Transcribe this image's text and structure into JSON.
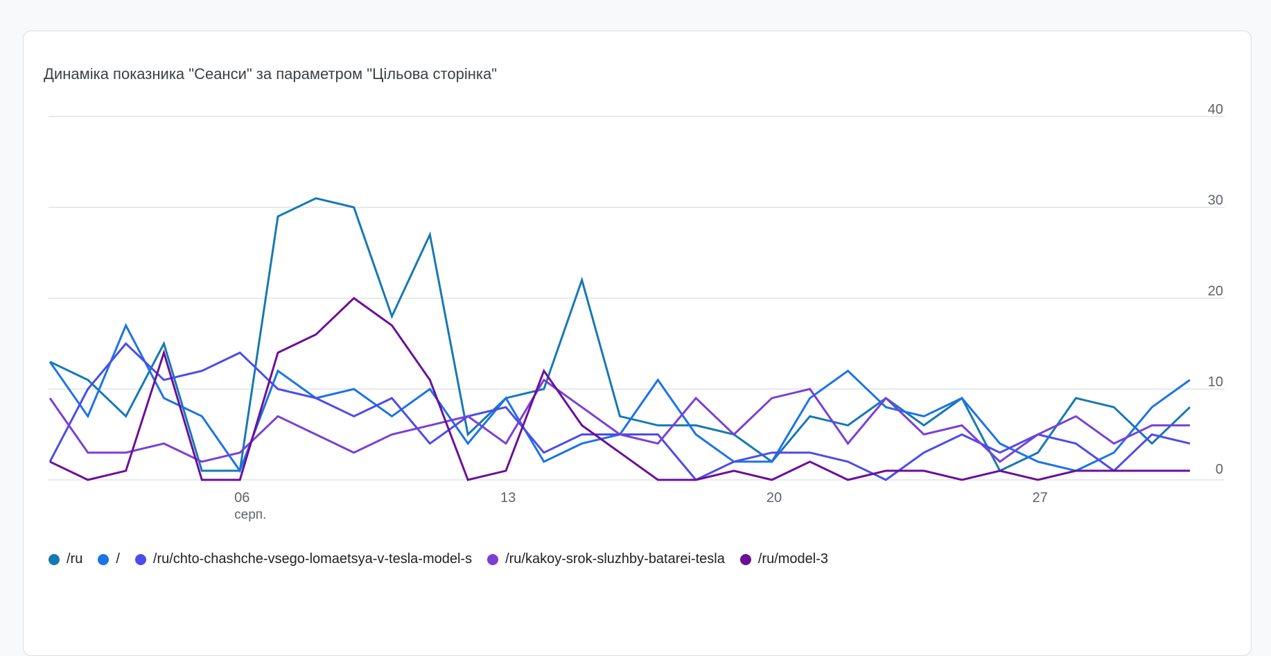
{
  "chart_data": {
    "type": "line",
    "title": "Динаміка показника \"Сеанси\" за параметром \"Цільова сторінка\"",
    "xlabel": "",
    "ylabel": "",
    "x": [
      1,
      2,
      3,
      4,
      5,
      6,
      7,
      8,
      9,
      10,
      11,
      12,
      13,
      14,
      15,
      16,
      17,
      18,
      19,
      20,
      21,
      22,
      23,
      24,
      25,
      26,
      27,
      28,
      29,
      30,
      31
    ],
    "x_ticks": [
      {
        "day": 6,
        "label": "06",
        "sublabel": "серп."
      },
      {
        "day": 13,
        "label": "13"
      },
      {
        "day": 20,
        "label": "20"
      },
      {
        "day": 27,
        "label": "27"
      }
    ],
    "y_ticks": [
      "0",
      "10",
      "20",
      "30",
      "40"
    ],
    "ylim": [
      0,
      40
    ],
    "grid": true,
    "legend_position": "bottom-left",
    "series": [
      {
        "name": "/ru",
        "color": "#1479b3",
        "values": [
          13,
          11,
          7,
          15,
          1,
          1,
          29,
          31,
          30,
          18,
          27,
          5,
          9,
          10,
          22,
          7,
          6,
          6,
          5,
          2,
          7,
          6,
          9,
          6,
          9,
          1,
          3,
          9,
          8,
          4,
          8
        ]
      },
      {
        "name": "/",
        "color": "#1a73e8",
        "values": [
          13,
          7,
          17,
          9,
          7,
          1,
          12,
          9,
          10,
          7,
          10,
          4,
          9,
          2,
          4,
          5,
          11,
          5,
          2,
          2,
          9,
          12,
          8,
          7,
          9,
          4,
          2,
          1,
          3,
          8,
          11
        ]
      },
      {
        "name": "/ru/chto-chashche-vsego-lomaetsya-v-tesla-model-s",
        "color": "#4b4cea",
        "values": [
          2,
          10,
          15,
          11,
          12,
          14,
          10,
          9,
          7,
          9,
          4,
          7,
          8,
          3,
          5,
          5,
          5,
          0,
          2,
          3,
          3,
          2,
          0,
          3,
          5,
          3,
          5,
          4,
          1,
          5,
          4
        ]
      },
      {
        "name": "/ru/kakoy-srok-sluzhby-batarei-tesla",
        "color": "#7b3fd6",
        "values": [
          9,
          3,
          3,
          4,
          2,
          3,
          7,
          5,
          3,
          5,
          6,
          7,
          4,
          11,
          8,
          5,
          4,
          9,
          5,
          9,
          10,
          4,
          9,
          5,
          6,
          2,
          5,
          7,
          4,
          6,
          6
        ]
      },
      {
        "name": "/ru/model-3",
        "color": "#6b0f98",
        "values": [
          2,
          0,
          1,
          14,
          0,
          0,
          14,
          16,
          20,
          17,
          11,
          0,
          1,
          12,
          6,
          3,
          0,
          0,
          1,
          0,
          2,
          0,
          1,
          1,
          0,
          1,
          0,
          1,
          1,
          1,
          1
        ]
      }
    ]
  }
}
